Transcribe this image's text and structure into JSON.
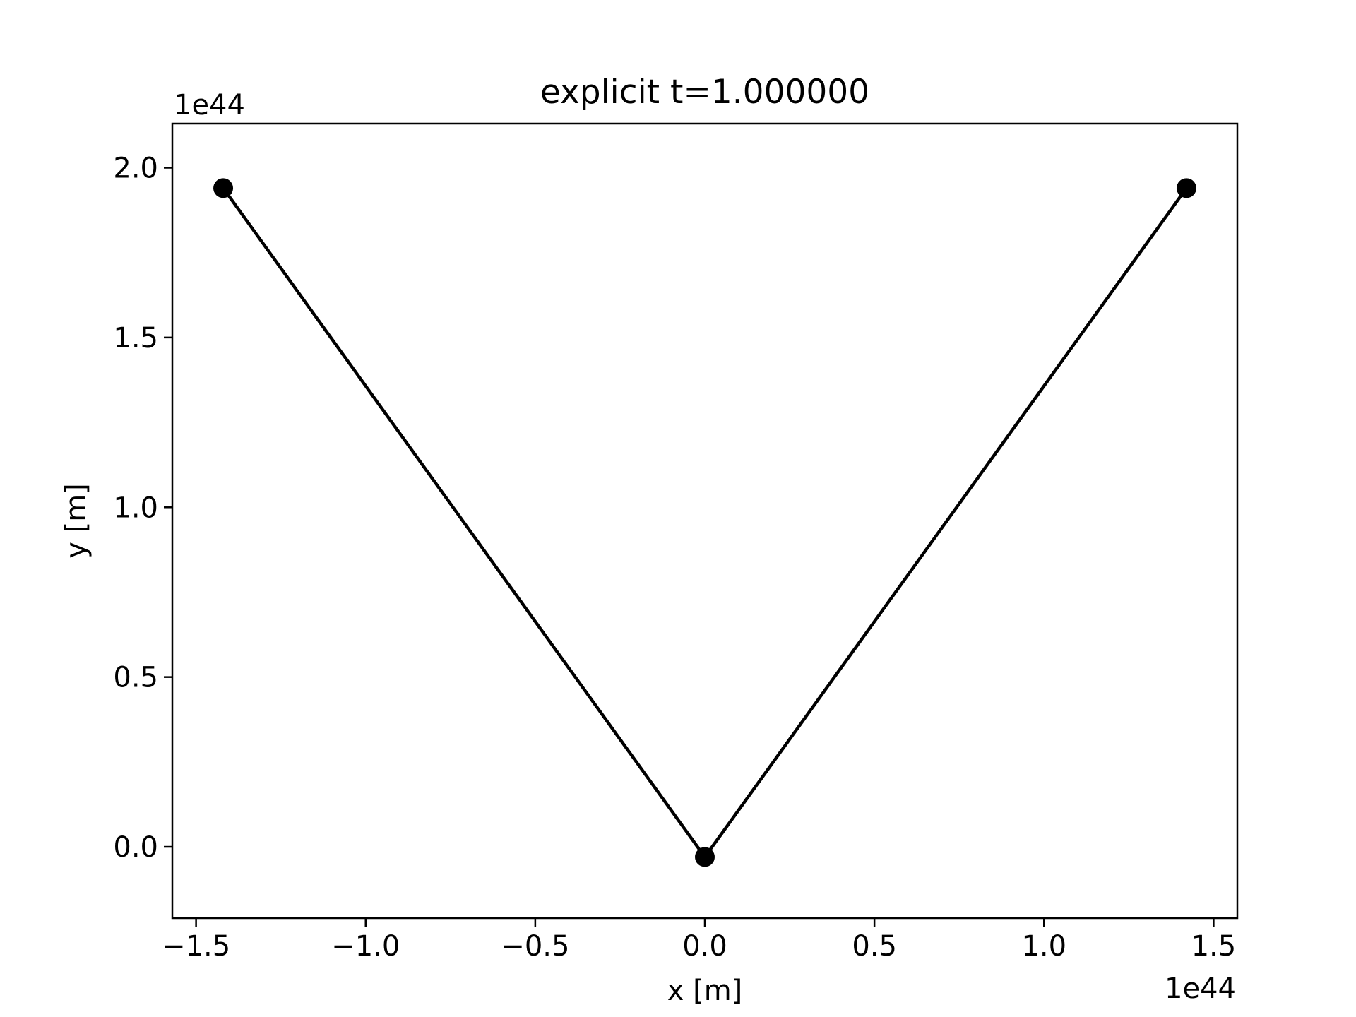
{
  "chart_data": {
    "type": "line",
    "title": "explicit t=1.000000",
    "xlabel": "x [m]",
    "ylabel": "y [m]",
    "x_offset_label": "1e44",
    "y_offset_label": "1e44",
    "xlim": [
      -1.57,
      1.57
    ],
    "ylim": [
      -0.21,
      2.13
    ],
    "x_ticks": [
      -1.5,
      -1.0,
      -0.5,
      0.0,
      0.5,
      1.0,
      1.5
    ],
    "x_tick_labels": [
      "−1.5",
      "−1.0",
      "−0.5",
      "0.0",
      "0.5",
      "1.0",
      "1.5"
    ],
    "y_ticks": [
      0.0,
      0.5,
      1.0,
      1.5,
      2.0
    ],
    "y_tick_labels": [
      "0.0",
      "0.5",
      "1.0",
      "1.5",
      "2.0"
    ],
    "grid": false,
    "legend": "none",
    "series": [
      {
        "color": "#000000",
        "marker": "circle",
        "points": [
          {
            "x": -1.42,
            "y": 1.94
          },
          {
            "x": 0.0,
            "y": -0.03
          },
          {
            "x": 1.42,
            "y": 1.94
          }
        ]
      }
    ]
  }
}
